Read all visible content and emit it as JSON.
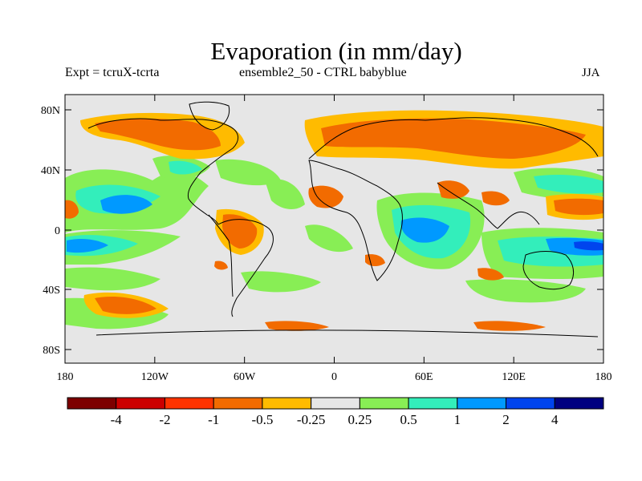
{
  "title": "Evaporation (in mm/day)",
  "subtitle_left": "Expt = tcruX-tcrta",
  "subtitle_center": "ensemble2_50 - CTRL babyblue",
  "subtitle_right": "JJA",
  "lat_ticks": [
    "80N",
    "40N",
    "0",
    "40S",
    "80S"
  ],
  "lon_ticks": [
    "180",
    "120W",
    "60W",
    "0",
    "60E",
    "120E",
    "180"
  ],
  "colorbar": {
    "colors": [
      "#7d0000",
      "#cc0000",
      "#ff3300",
      "#f26b00",
      "#ffbb00",
      "#e6e6e6",
      "#88ee55",
      "#33eebb",
      "#0099ff",
      "#0044ee",
      "#000080"
    ],
    "labels": [
      "-4",
      "-2",
      "-1",
      "-0.5",
      "-0.25",
      "0.25",
      "0.5",
      "1",
      "2",
      "4"
    ]
  },
  "colors": {
    "ocean_neutral": "#e6e6e6",
    "coast": "#000000"
  }
}
